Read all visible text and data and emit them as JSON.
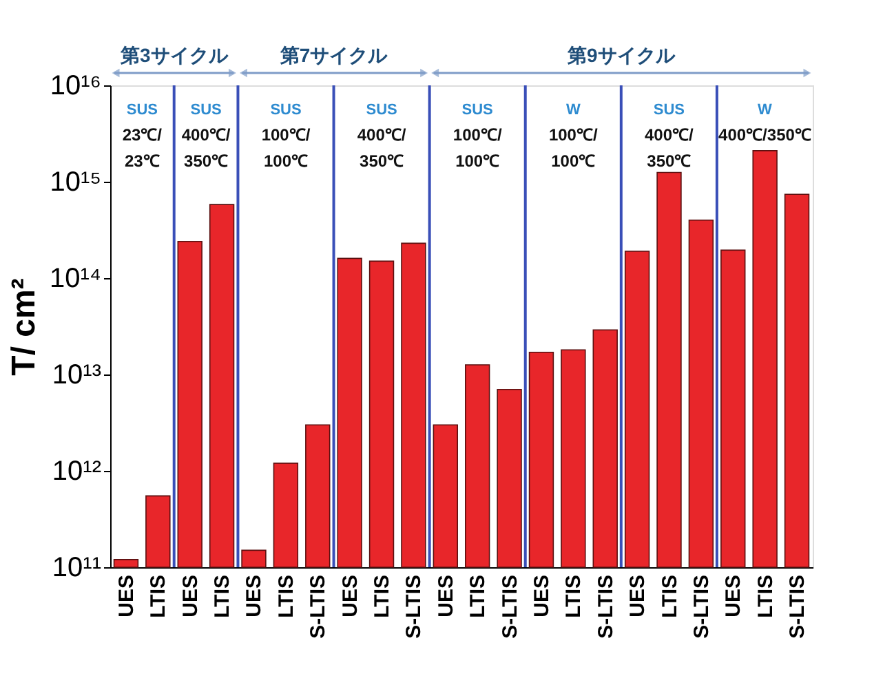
{
  "chart_data": {
    "type": "bar",
    "ylabel": "T/ cm²",
    "categories": [
      "UES",
      "LTIS",
      "UES",
      "LTIS",
      "UES",
      "LTIS",
      "S-LTIS",
      "UES",
      "LTIS",
      "S-LTIS",
      "UES",
      "LTIS",
      "S-LTIS",
      "UES",
      "LTIS",
      "S-LTIS",
      "UES",
      "LTIS",
      "S-LTIS",
      "UES",
      "LTIS",
      "S-LTIS"
    ],
    "values": [
      120000000000.0,
      550000000000.0,
      240000000000000.0,
      580000000000000.0,
      150000000000.0,
      1200000000000.0,
      3000000000000.0,
      160000000000000.0,
      150000000000000.0,
      230000000000000.0,
      3000000000000.0,
      12600000000000.0,
      7000000000000.0,
      17000000000000.0,
      18000000000000.0,
      29000000000000.0,
      190000000000000.0,
      1250000000000000.0,
      400000000000000.0,
      195000000000000.0,
      2100000000000000.0,
      740000000000000.0
    ],
    "color": "#e8262a",
    "log": true,
    "ylim": [
      100000000000.0,
      1e+16
    ],
    "yticks": [
      {
        "value": 100000000000.0,
        "label": "10¹¹"
      },
      {
        "value": 1000000000000.0,
        "label": "10¹²"
      },
      {
        "value": 10000000000000.0,
        "label": "10¹³"
      },
      {
        "value": 100000000000000.0,
        "label": "10¹⁴"
      },
      {
        "value": 1000000000000000.0,
        "label": "10¹⁵"
      },
      {
        "value": 1e+16,
        "label": "10¹⁶"
      }
    ],
    "annotations": [
      "第3サイクル",
      "第7サイクル",
      "第9サイクル",
      "SUS\n23℃/\n23℃",
      "SUS\n400℃/\n350℃",
      "SUS\n100℃/\n100℃",
      "SUS\n400℃/\n350℃",
      "SUS\n100℃/\n100℃",
      "W\n100℃/\n100℃",
      "SUS\n400℃/\n350℃",
      "W\n400℃/350℃"
    ],
    "grid": false
  }
}
